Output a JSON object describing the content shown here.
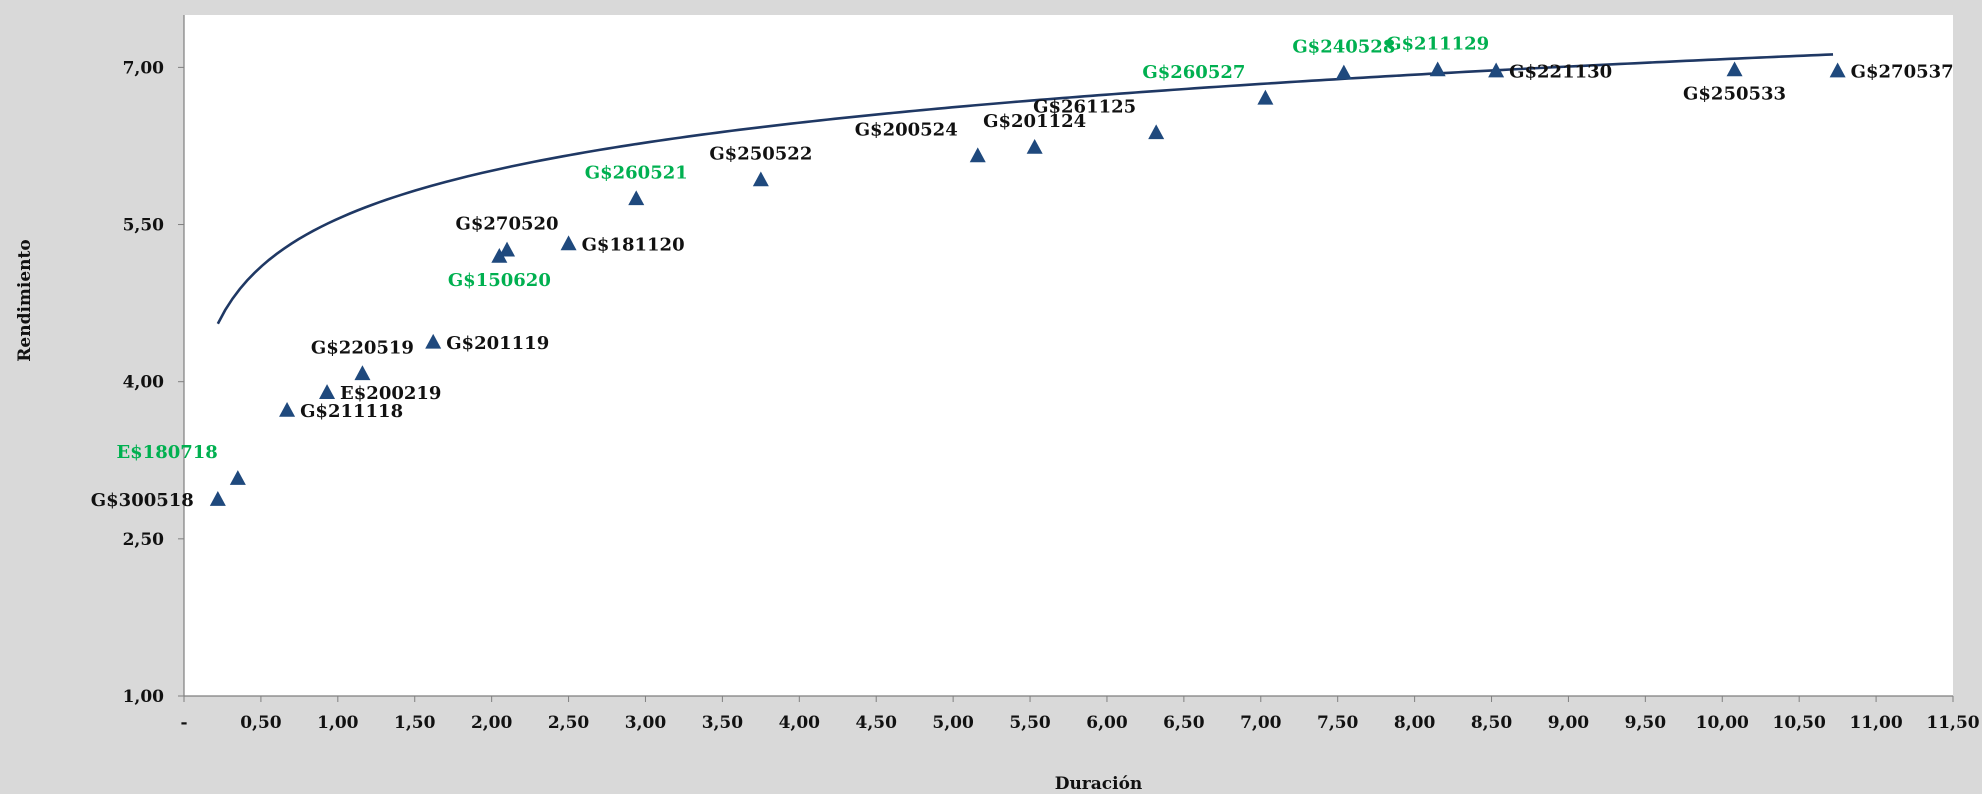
{
  "chart_data": {
    "type": "scatter",
    "xlabel": "Duración",
    "ylabel": "Rendimiento",
    "xlim": [
      0,
      11.5
    ],
    "ylim": [
      1,
      7.5
    ],
    "x_ticks": [
      "-",
      "0,50",
      "1,00",
      "1,50",
      "2,00",
      "2,50",
      "3,00",
      "3,50",
      "4,00",
      "4,50",
      "5,00",
      "5,50",
      "6,00",
      "6,50",
      "7,00",
      "7,50",
      "8,00",
      "8,50",
      "9,00",
      "9,50",
      "10,00",
      "10,50",
      "11,00",
      "11,50"
    ],
    "y_ticks": [
      "1,00",
      "2,50",
      "4,00",
      "5,50",
      "7,00"
    ],
    "grid": false,
    "legend": "none",
    "colors": {
      "marker": "#1f497d",
      "curve": "#1f3864",
      "label_dark": "#111111",
      "label_green": "#00b050",
      "plot_bg": "#ffffff",
      "page_bg": "#d9d9d9"
    },
    "points": [
      {
        "name": "G$300518",
        "x": 0.22,
        "y": 2.88,
        "color": "dark",
        "label_pos": "left"
      },
      {
        "name": "E$180718",
        "x": 0.35,
        "y": 3.08,
        "color": "green",
        "label_pos": "upper-left"
      },
      {
        "name": "G$211118",
        "x": 0.67,
        "y": 3.73,
        "color": "dark",
        "label_pos": "right"
      },
      {
        "name": "E$200219",
        "x": 0.93,
        "y": 3.9,
        "color": "dark",
        "label_pos": "right"
      },
      {
        "name": "G$220519",
        "x": 1.16,
        "y": 4.08,
        "color": "dark",
        "label_pos": "above"
      },
      {
        "name": "G$201119",
        "x": 1.62,
        "y": 4.38,
        "color": "dark",
        "label_pos": "right"
      },
      {
        "name": "G$150620",
        "x": 2.05,
        "y": 5.2,
        "color": "green",
        "label_pos": "below"
      },
      {
        "name": "G$270520",
        "x": 2.1,
        "y": 5.26,
        "color": "dark",
        "label_pos": "above"
      },
      {
        "name": "G$181120",
        "x": 2.5,
        "y": 5.32,
        "color": "dark",
        "label_pos": "right"
      },
      {
        "name": "G$260521",
        "x": 2.94,
        "y": 5.75,
        "color": "green",
        "label_pos": "above"
      },
      {
        "name": "G$250522",
        "x": 3.75,
        "y": 5.93,
        "color": "dark",
        "label_pos": "above"
      },
      {
        "name": "G$200524",
        "x": 5.16,
        "y": 6.16,
        "color": "dark",
        "label_pos": "upper-left"
      },
      {
        "name": "G$201124",
        "x": 5.53,
        "y": 6.24,
        "color": "dark",
        "label_pos": "above"
      },
      {
        "name": "G$261125",
        "x": 6.32,
        "y": 6.38,
        "color": "dark",
        "label_pos": "upper-left"
      },
      {
        "name": "G$260527",
        "x": 7.03,
        "y": 6.71,
        "color": "green",
        "label_pos": "upper-left"
      },
      {
        "name": "G$240528",
        "x": 7.54,
        "y": 6.95,
        "color": "green",
        "label_pos": "above"
      },
      {
        "name": "G$211129",
        "x": 8.15,
        "y": 6.98,
        "color": "green",
        "label_pos": "above"
      },
      {
        "name": "G$221130",
        "x": 8.53,
        "y": 6.97,
        "color": "dark",
        "label_pos": "right"
      },
      {
        "name": "G$250533",
        "x": 10.08,
        "y": 6.98,
        "color": "dark",
        "label_pos": "below"
      },
      {
        "name": "G$270537",
        "x": 10.75,
        "y": 6.97,
        "color": "dark",
        "label_pos": "right"
      }
    ],
    "trendline": {
      "type": "logarithmic",
      "a": 5.555,
      "b": 0.6614,
      "x_range": [
        0.22,
        10.72
      ]
    }
  }
}
